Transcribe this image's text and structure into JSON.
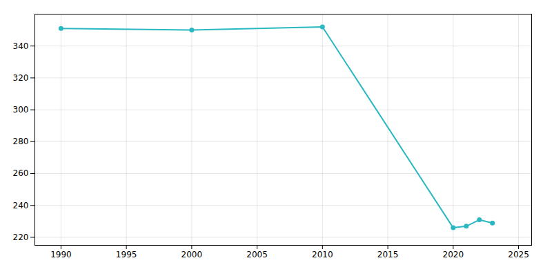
{
  "chart_data": {
    "type": "line",
    "x": [
      1990,
      2000,
      2010,
      2020,
      2021,
      2022,
      2023
    ],
    "values": [
      351,
      350,
      352,
      226,
      227,
      231,
      229
    ],
    "color": "#29B8C2",
    "marker": "circle",
    "xlim": [
      1988,
      2026
    ],
    "ylim": [
      215,
      360
    ],
    "xticks": [
      1990,
      1995,
      2000,
      2005,
      2010,
      2015,
      2020,
      2025
    ],
    "yticks": [
      220,
      240,
      260,
      280,
      300,
      320,
      340
    ],
    "grid": true
  }
}
